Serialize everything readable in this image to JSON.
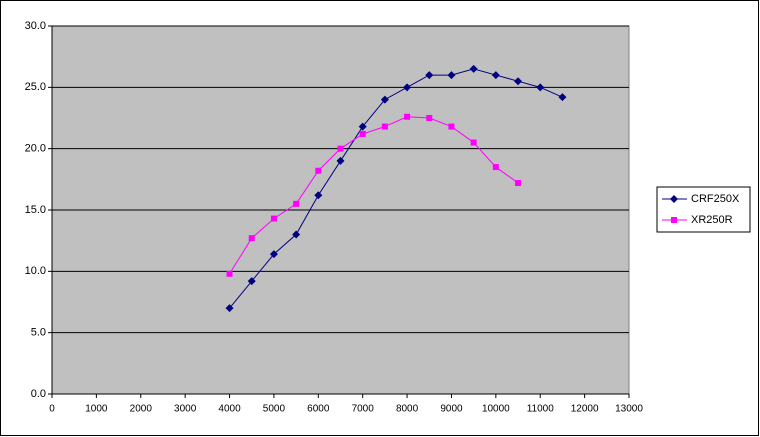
{
  "chart_data": {
    "type": "line",
    "series": [
      {
        "name": "CRF250X",
        "color": "#000080",
        "marker": "diamond",
        "x": [
          4000,
          4500,
          5000,
          5500,
          6000,
          6500,
          7000,
          7500,
          8000,
          8500,
          9000,
          9500,
          10000,
          10500,
          11000,
          11500
        ],
        "values": [
          7.0,
          9.2,
          11.4,
          13.0,
          16.2,
          19.0,
          21.8,
          24.0,
          25.0,
          26.0,
          26.0,
          26.5,
          26.0,
          25.5,
          25.0,
          24.2
        ]
      },
      {
        "name": "XR250R",
        "color": "#ff00ff",
        "marker": "square",
        "x": [
          4000,
          4500,
          5000,
          5500,
          6000,
          6500,
          7000,
          7500,
          8000,
          8500,
          9000,
          9500,
          10000,
          10500
        ],
        "values": [
          9.8,
          12.7,
          14.3,
          15.5,
          18.2,
          20.0,
          21.2,
          21.8,
          22.6,
          22.5,
          21.8,
          20.5,
          18.5,
          17.2
        ]
      }
    ],
    "xlim": [
      0,
      13000
    ],
    "xticks": [
      0,
      1000,
      2000,
      3000,
      4000,
      5000,
      6000,
      7000,
      8000,
      9000,
      10000,
      11000,
      12000,
      13000
    ],
    "ylim": [
      0,
      30
    ],
    "yticks": [
      {
        "value": 0,
        "label": "0.0"
      },
      {
        "value": 5,
        "label": "5.0"
      },
      {
        "value": 10,
        "label": "10.0"
      },
      {
        "value": 15,
        "label": "15.0"
      },
      {
        "value": 20,
        "label": "20.0"
      },
      {
        "value": 25,
        "label": "25.0"
      },
      {
        "value": 30,
        "label": "30.0"
      }
    ],
    "grid": true,
    "legend": "right",
    "plot_background": "#c0c0c0"
  }
}
